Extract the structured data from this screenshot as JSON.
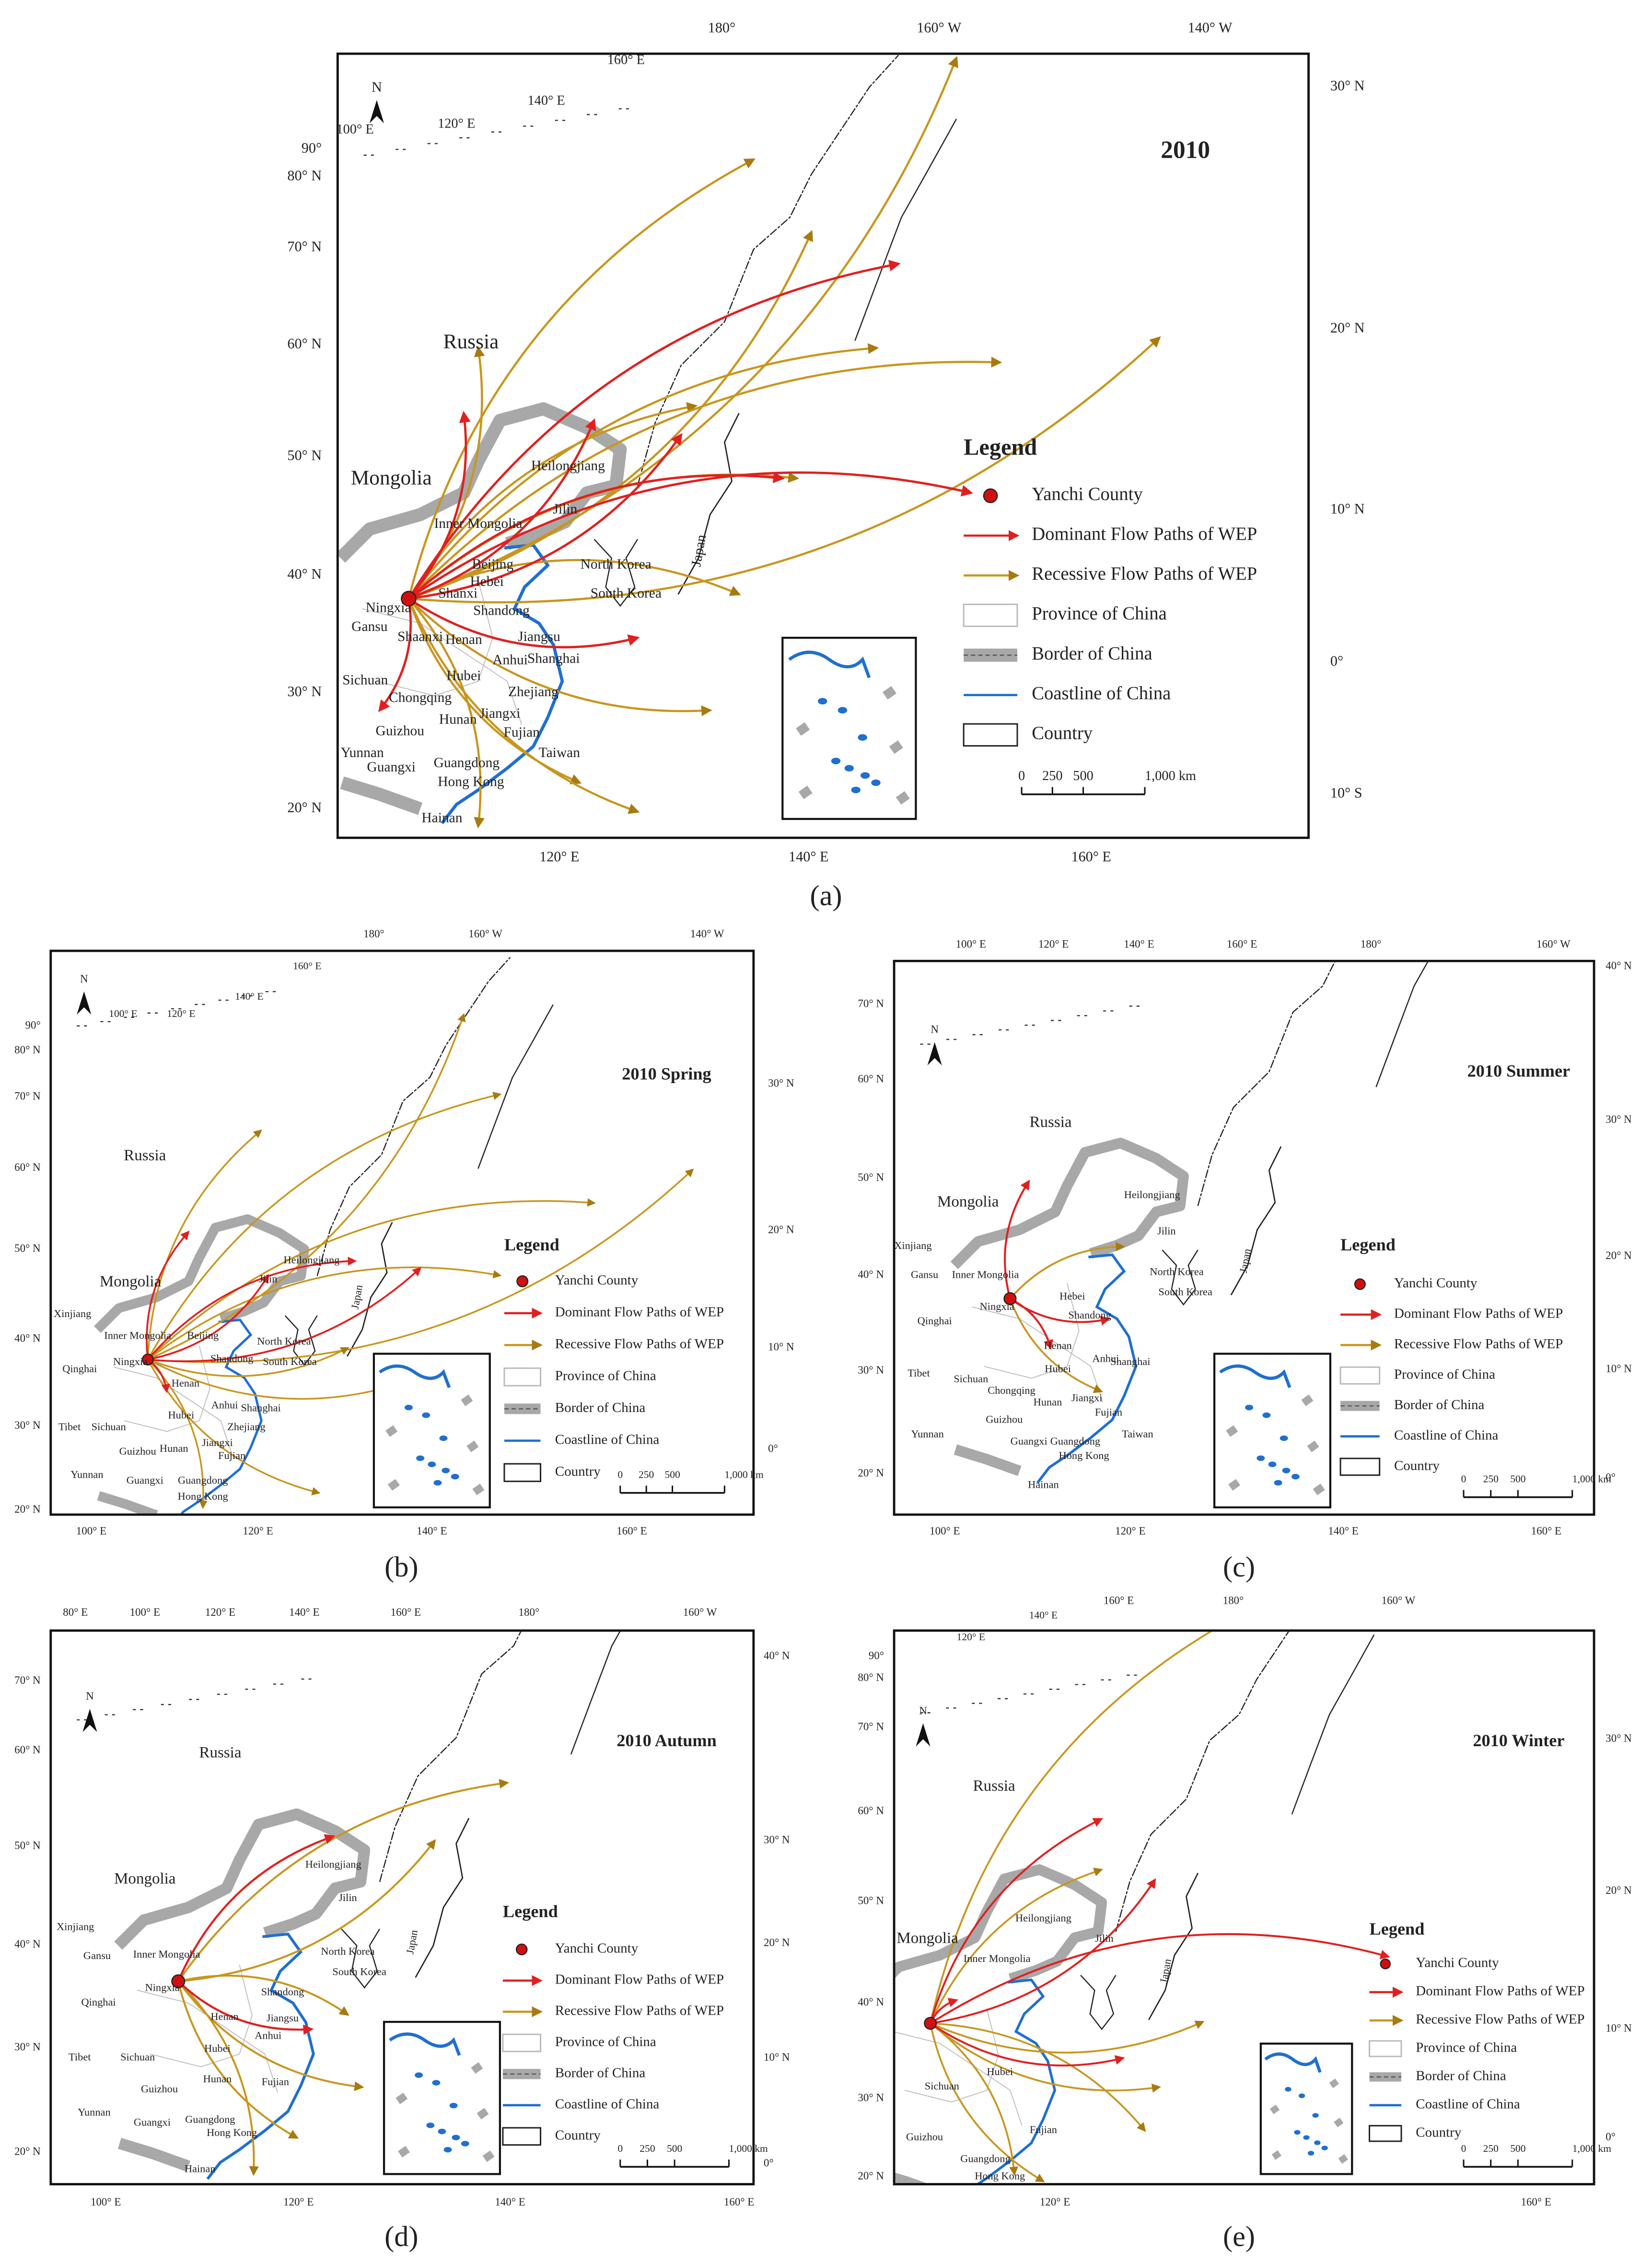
{
  "figure": {
    "panels": [
      {
        "label": "(a)",
        "title": "2010",
        "north": "N",
        "legend": {
          "title": "Legend",
          "items": [
            "Yanchi County",
            "Dominant Flow Paths of WEP",
            "Recessive Flow Paths of WEP",
            "Province of China",
            "Border of China",
            "Coastline of China",
            "Country"
          ]
        },
        "scale_bar": [
          "0",
          "250",
          "500",
          "1,000 km"
        ],
        "top_labels": [
          "180°",
          "160° W",
          "140° W"
        ],
        "arc_labels": [
          "100° E",
          "120° E",
          "140° E",
          "160° E"
        ],
        "left_labels": [
          "90°",
          "80° N",
          "70° N",
          "60° N",
          "50° N",
          "40° N",
          "30° N",
          "20° N"
        ],
        "right_labels": [
          "30° N",
          "20° N",
          "10° N",
          "0°",
          "10° S"
        ],
        "bottom_labels": [
          "120° E",
          "140° E",
          "160° E"
        ],
        "places": [
          "Russia",
          "Mongolia",
          "Heilongjiang",
          "Jilin",
          "Inner Mongolia",
          "Beijing",
          "North Korea",
          "South Korea",
          "Japan",
          "Ningxia",
          "Gansu",
          "Shaanxi",
          "Henan",
          "Sichuan",
          "Hubei",
          "Chongqing",
          "Anhui",
          "Jiangsu",
          "Shanghai",
          "Zhejiang",
          "Hunan",
          "Jiangxi",
          "Fujian",
          "Guizhou",
          "Yunnan",
          "Guangxi",
          "Guangdong",
          "Hong Kong",
          "Taiwan",
          "Hainan",
          "Shandong",
          "Shanxi",
          "Hebei"
        ]
      },
      {
        "label": "(b)",
        "title": "2010 Spring",
        "north": "N",
        "legend": {
          "title": "Legend",
          "items": [
            "Yanchi County",
            "Dominant Flow Paths of WEP",
            "Recessive Flow Paths of WEP",
            "Province of China",
            "Border of China",
            "Coastline of China",
            "Country"
          ]
        },
        "scale_bar": [
          "0",
          "250",
          "500",
          "1,000 km"
        ],
        "top_labels": [
          "180°",
          "160° W",
          "140° W"
        ],
        "arc_labels": [
          "100° E",
          "120° E",
          "140° E",
          "160° E"
        ],
        "left_labels": [
          "90°",
          "80° N",
          "70° N",
          "60° N",
          "50° N",
          "40° N",
          "30° N",
          "20° N"
        ],
        "right_labels": [
          "30° N",
          "20° N",
          "10° N",
          "0°"
        ],
        "bottom_labels": [
          "100° E",
          "120° E",
          "140° E",
          "160° E"
        ],
        "places": [
          "Russia",
          "Mongolia",
          "Xinjiang",
          "Heilongjiang",
          "Jilin",
          "Inner Mongolia",
          "Beijing",
          "North Korea",
          "South Korea",
          "Qinghai",
          "Ningxia",
          "Tibet",
          "Sichuan",
          "Hubei",
          "Henan",
          "Shandong",
          "Anhui",
          "Shanghai",
          "Zhejiang",
          "Hunan",
          "Jiangxi",
          "Fujian",
          "Guizhou",
          "Yunnan",
          "Guangxi",
          "Guangdong",
          "Hong Kong",
          "Japan"
        ]
      },
      {
        "label": "(c)",
        "title": "2010 Summer",
        "north": "N",
        "legend": {
          "title": "Legend",
          "items": [
            "Yanchi County",
            "Dominant Flow Paths of WEP",
            "Recessive Flow Paths of WEP",
            "Province of China",
            "Border of China",
            "Coastline of China",
            "Country"
          ]
        },
        "scale_bar": [
          "0",
          "250",
          "500",
          "1,000 km"
        ],
        "top_labels": [
          "100° E",
          "120° E",
          "140° E",
          "160° E",
          "180°",
          "160° W"
        ],
        "left_labels": [
          "70° N",
          "60° N",
          "50° N",
          "40° N",
          "30° N",
          "20° N"
        ],
        "right_labels": [
          "40° N",
          "30° N",
          "20° N",
          "10° N",
          "0°"
        ],
        "bottom_labels": [
          "100° E",
          "120° E",
          "140° E",
          "160° E"
        ],
        "places": [
          "Russia",
          "Mongolia",
          "Xinjiang",
          "Heilongjiang",
          "Jilin",
          "Inner Mongolia",
          "Gansu",
          "Hebei",
          "North Korea",
          "South Korea",
          "Qinghai",
          "Ningxia",
          "Shandong",
          "Henan",
          "Tibet",
          "Sichuan",
          "Hubei",
          "Anhui",
          "Shanghai",
          "Chongqing",
          "Hunan",
          "Jiangxi",
          "Fujian",
          "Guizhou",
          "Yunnan",
          "Guangxi",
          "Guangdong",
          "Hong Kong",
          "Taiwan",
          "Hainan",
          "Japan"
        ]
      },
      {
        "label": "(d)",
        "title": "2010 Autumn",
        "north": "N",
        "legend": {
          "title": "Legend",
          "items": [
            "Yanchi County",
            "Dominant Flow Paths of WEP",
            "Recessive Flow Paths of WEP",
            "Province of China",
            "Border of China",
            "Coastline of China",
            "Country"
          ]
        },
        "scale_bar": [
          "0",
          "250",
          "500",
          "1,000 km"
        ],
        "top_labels": [
          "80° E",
          "100° E",
          "120° E",
          "140° E",
          "160° E",
          "180°",
          "160° W"
        ],
        "left_labels": [
          "70° N",
          "60° N",
          "50° N",
          "40° N",
          "30° N",
          "20° N"
        ],
        "right_labels": [
          "40° N",
          "30° N",
          "20° N",
          "10° N",
          "0°"
        ],
        "bottom_labels": [
          "100° E",
          "120° E",
          "140° E",
          "160° E"
        ],
        "places": [
          "Russia",
          "Mongolia",
          "Xinjiang",
          "Heilongjiang",
          "Jilin",
          "Inner Mongolia",
          "Gansu",
          "North Korea",
          "South Korea",
          "Qinghai",
          "Ningxia",
          "Shandong",
          "Henan",
          "Tibet",
          "Sichuan",
          "Hubei",
          "Anhui",
          "Jiangsu",
          "Guizhou",
          "Hunan",
          "Fujian",
          "Yunnan",
          "Guangxi",
          "Guangdong",
          "Hong Kong",
          "Hainan",
          "Japan"
        ]
      },
      {
        "label": "(e)",
        "title": "2010 Winter",
        "north": "N",
        "legend": {
          "title": "Legend",
          "items": [
            "Yanchi County",
            "Dominant Flow Paths of WEP",
            "Recessive Flow Paths of WEP",
            "Province of China",
            "Border of China",
            "Coastline of China",
            "Country"
          ]
        },
        "scale_bar": [
          "0",
          "250",
          "500",
          "1,000 km"
        ],
        "top_labels": [
          "160° E",
          "180°",
          "160° W"
        ],
        "arc_labels": [
          "120° E",
          "140° E"
        ],
        "left_labels": [
          "90°",
          "80° N",
          "70° N",
          "60° N",
          "50° N",
          "40° N",
          "30° N",
          "20° N"
        ],
        "right_labels": [
          "30° N",
          "20° N",
          "10° N",
          "0°"
        ],
        "bottom_labels": [
          "120° E",
          "160° E"
        ],
        "places": [
          "Russia",
          "Mongolia",
          "Heilongjiang",
          "Jilin",
          "Inner Mongolia",
          "Sichuan",
          "Hubei",
          "Guizhou",
          "Fujian",
          "Guangdong",
          "Hong Kong",
          "Japan"
        ]
      }
    ]
  }
}
